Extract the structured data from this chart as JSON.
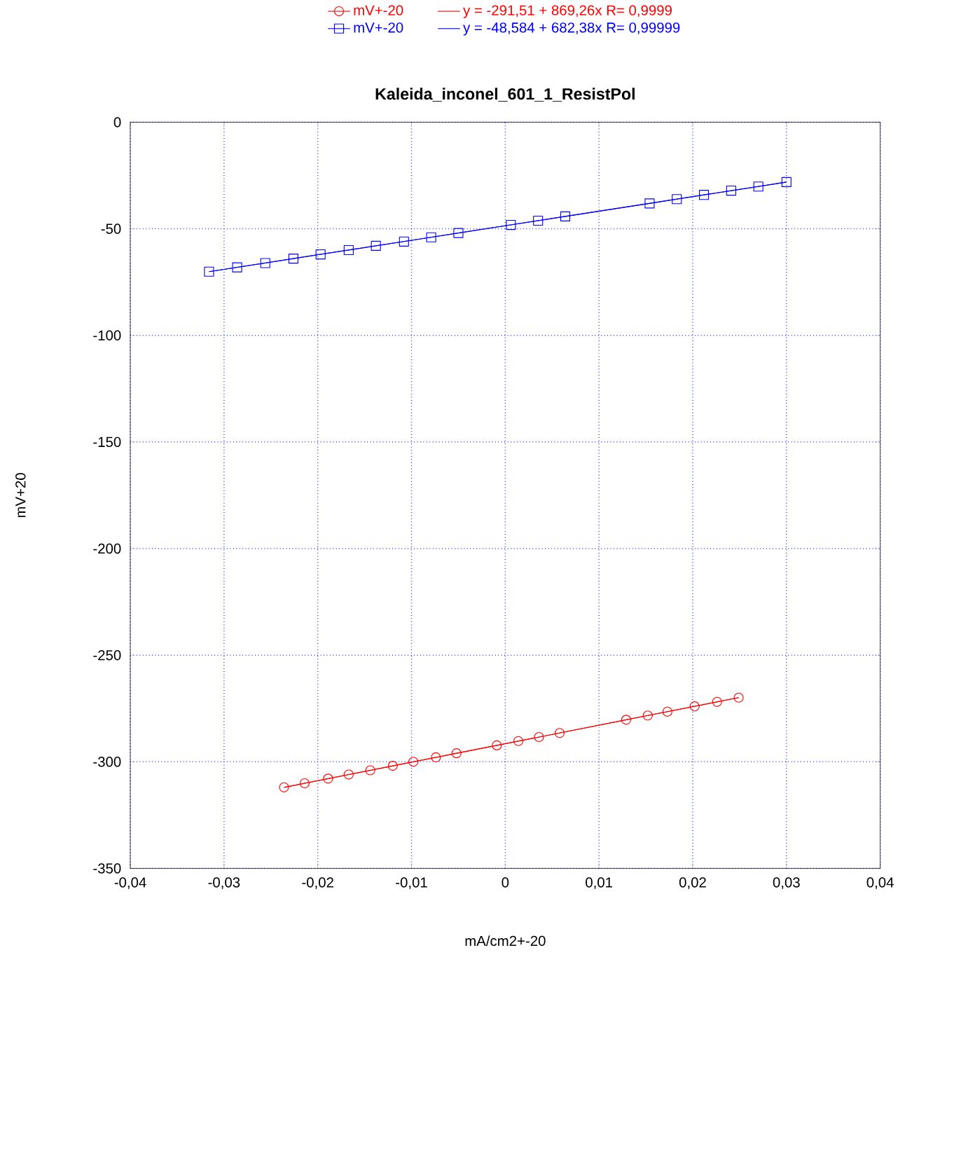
{
  "chart_data": {
    "type": "line",
    "title": "Kaleida_inconel_601_1_ResistPol",
    "xlabel": "mA/cm2+-20",
    "ylabel": "mV+20",
    "xlim": [
      -0.04,
      0.04
    ],
    "ylim": [
      -350,
      0
    ],
    "xticks": [
      {
        "value": -0.04,
        "label": "-0,04"
      },
      {
        "value": -0.03,
        "label": "-0,03"
      },
      {
        "value": -0.02,
        "label": "-0,02"
      },
      {
        "value": -0.01,
        "label": "-0,01"
      },
      0,
      {
        "value": 0.01,
        "label": "0,01"
      },
      {
        "value": 0.02,
        "label": "0,02"
      },
      {
        "value": 0.03,
        "label": "0,03"
      },
      {
        "value": 0.04,
        "label": "0,04"
      }
    ],
    "yticks": [
      -350,
      -300,
      -250,
      -200,
      -150,
      -100,
      -50,
      0
    ],
    "grid": true,
    "legend": "top",
    "series": [
      {
        "name": "mV+-20",
        "color": "#ff0000",
        "marker": "circle",
        "x": [
          -0.0236,
          -0.0214,
          -0.0189,
          -0.0167,
          -0.0144,
          -0.012,
          -0.0098,
          -0.0074,
          -0.0052,
          -0.0009,
          0.0014,
          0.0036,
          0.0058,
          0.0129,
          0.0152,
          0.0173,
          0.0202,
          0.0226,
          0.0249
        ],
        "values": [
          -312.0,
          -310.1,
          -307.9,
          -306.0,
          -304.0,
          -301.9,
          -300.0,
          -297.9,
          -296.0,
          -292.3,
          -290.3,
          -288.4,
          -286.5,
          -280.3,
          -278.3,
          -276.5,
          -274.0,
          -271.9,
          -269.9
        ]
      },
      {
        "name": "mV+-20",
        "color": "#0000ff",
        "marker": "square",
        "x": [
          -0.0316,
          -0.0286,
          -0.0256,
          -0.0226,
          -0.0197,
          -0.0167,
          -0.0138,
          -0.0108,
          -0.0079,
          -0.005,
          0.0006,
          0.0035,
          0.0064,
          0.0154,
          0.0183,
          0.0212,
          0.0241,
          0.027,
          0.03
        ],
        "values": [
          -70.1,
          -68.1,
          -66.1,
          -64.0,
          -62.0,
          -60.0,
          -58.0,
          -56.0,
          -54.0,
          -52.0,
          -48.2,
          -46.2,
          -44.2,
          -38.1,
          -36.1,
          -34.1,
          -32.1,
          -30.2,
          -28.1
        ]
      },
      {
        "name": "y = -291,51 + 869,26x   R= 0,9999",
        "color": "#ff0000",
        "marker": "none",
        "x": [
          -0.0236,
          0.0249
        ],
        "values": [
          -312.0,
          -269.9
        ]
      },
      {
        "name": "y = -48,584 + 682,38x   R= 0,99999",
        "color": "#0000ff",
        "marker": "none",
        "x": [
          -0.0316,
          0.03
        ],
        "values": [
          -70.1,
          -28.1
        ]
      }
    ]
  }
}
